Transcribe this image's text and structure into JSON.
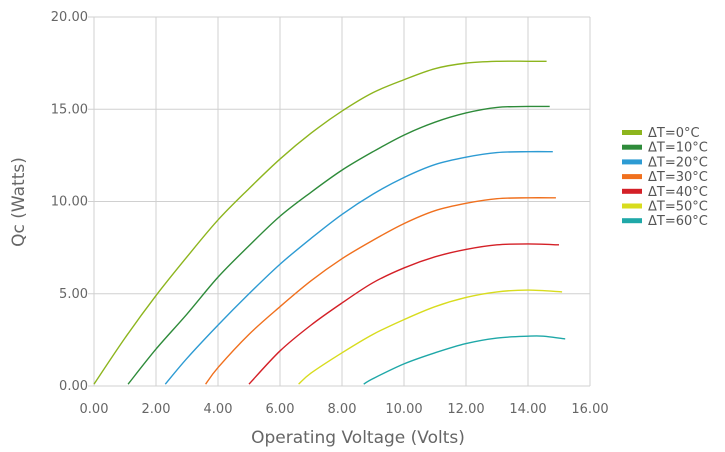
{
  "chart_data": {
    "type": "line",
    "xlabel": "Operating Voltage (Volts)",
    "ylabel": "Qc (Watts)",
    "xlim": [
      0,
      16
    ],
    "ylim": [
      0,
      20
    ],
    "xticks": [
      0,
      2,
      4,
      6,
      8,
      10,
      12,
      14,
      16
    ],
    "yticks": [
      0,
      5,
      10,
      15,
      20
    ],
    "xtick_labels": [
      "0.00",
      "2.00",
      "4.00",
      "6.00",
      "8.00",
      "10.00",
      "12.00",
      "14.00",
      "16.00"
    ],
    "ytick_labels": [
      "0.00",
      "5.00",
      "10.00",
      "15.00",
      "20.00"
    ],
    "grid": true,
    "legend_position": "right",
    "series": [
      {
        "name": "ΔT=0°C",
        "color": "#8db51e",
        "x": [
          0.0,
          1.0,
          2.0,
          3.0,
          4.0,
          5.0,
          6.0,
          7.0,
          8.0,
          9.0,
          10.0,
          11.0,
          12.0,
          13.0,
          14.0,
          14.6
        ],
        "y": [
          0.1,
          2.6,
          4.9,
          7.0,
          9.0,
          10.7,
          12.3,
          13.7,
          14.9,
          15.9,
          16.6,
          17.2,
          17.5,
          17.6,
          17.6,
          17.6
        ]
      },
      {
        "name": "ΔT=10°C",
        "color": "#2e8b3a",
        "x": [
          1.1,
          2.0,
          3.0,
          4.0,
          5.0,
          6.0,
          7.0,
          8.0,
          9.0,
          10.0,
          11.0,
          12.0,
          13.0,
          14.0,
          14.7
        ],
        "y": [
          0.1,
          2.0,
          3.9,
          5.9,
          7.6,
          9.2,
          10.5,
          11.7,
          12.7,
          13.6,
          14.3,
          14.8,
          15.1,
          15.15,
          15.15
        ]
      },
      {
        "name": "ΔT=20°C",
        "color": "#2d9bd3",
        "x": [
          2.3,
          3.0,
          4.0,
          5.0,
          6.0,
          7.0,
          8.0,
          9.0,
          10.0,
          11.0,
          12.0,
          13.0,
          14.0,
          14.8
        ],
        "y": [
          0.1,
          1.5,
          3.3,
          5.0,
          6.6,
          8.0,
          9.3,
          10.4,
          11.3,
          12.0,
          12.4,
          12.65,
          12.7,
          12.7
        ]
      },
      {
        "name": "ΔT=30°C",
        "color": "#f0701e",
        "x": [
          3.6,
          4.0,
          5.0,
          6.0,
          7.0,
          8.0,
          9.0,
          10.0,
          11.0,
          12.0,
          13.0,
          14.0,
          14.9
        ],
        "y": [
          0.1,
          1.0,
          2.8,
          4.3,
          5.7,
          6.9,
          7.9,
          8.8,
          9.5,
          9.9,
          10.15,
          10.2,
          10.2
        ]
      },
      {
        "name": "ΔT=40°C",
        "color": "#d42027",
        "x": [
          5.0,
          6.0,
          7.0,
          8.0,
          9.0,
          10.0,
          11.0,
          12.0,
          13.0,
          14.0,
          15.0
        ],
        "y": [
          0.1,
          1.9,
          3.3,
          4.5,
          5.6,
          6.4,
          7.0,
          7.4,
          7.65,
          7.7,
          7.65
        ]
      },
      {
        "name": "ΔT=50°C",
        "color": "#d8dc1e",
        "x": [
          6.6,
          7.0,
          8.0,
          9.0,
          10.0,
          11.0,
          12.0,
          13.0,
          14.0,
          15.1
        ],
        "y": [
          0.1,
          0.7,
          1.8,
          2.8,
          3.6,
          4.3,
          4.8,
          5.1,
          5.2,
          5.1
        ]
      },
      {
        "name": "ΔT=60°C",
        "color": "#1fa8a8",
        "x": [
          8.7,
          9.0,
          10.0,
          11.0,
          12.0,
          13.0,
          14.0,
          14.5,
          15.2
        ],
        "y": [
          0.1,
          0.4,
          1.2,
          1.8,
          2.3,
          2.6,
          2.7,
          2.7,
          2.55
        ]
      }
    ]
  }
}
